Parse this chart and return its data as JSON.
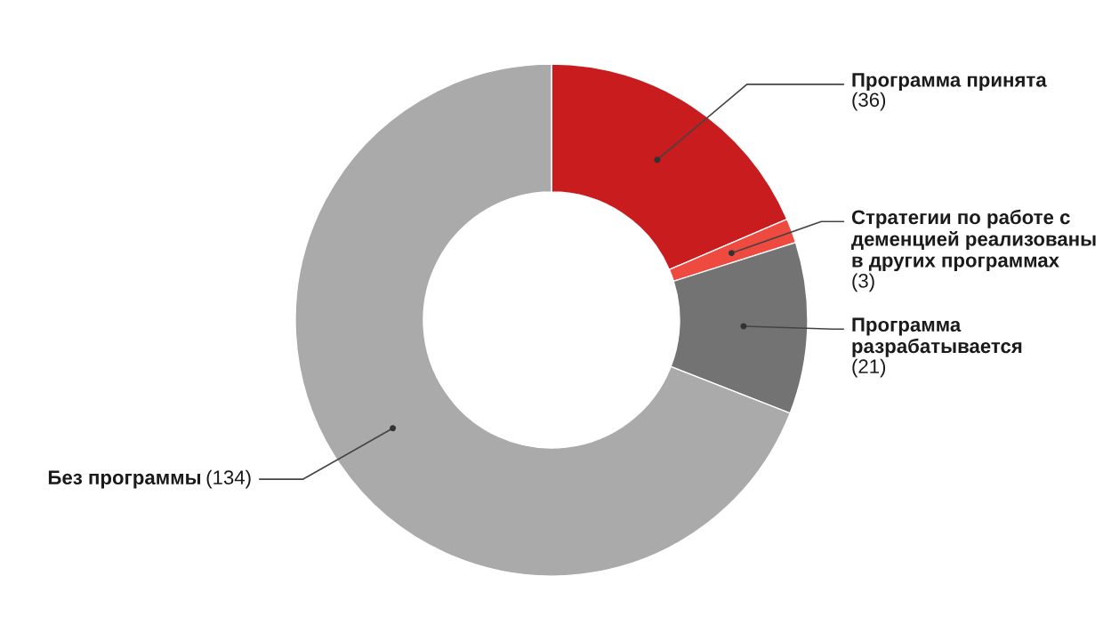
{
  "chart_data": {
    "type": "donut",
    "categories": [
      "Программа принята",
      "Стратегии по работе с деменцией реализованы в других программах",
      "Программа разрабатывается",
      "Без программы"
    ],
    "values": [
      36,
      3,
      21,
      134
    ],
    "colors": [
      "#c81c1e",
      "#ef4a3f",
      "#737373",
      "#aaaaaa"
    ],
    "value_labels": [
      "(36)",
      "(3)",
      "(21)",
      "(134)"
    ]
  }
}
